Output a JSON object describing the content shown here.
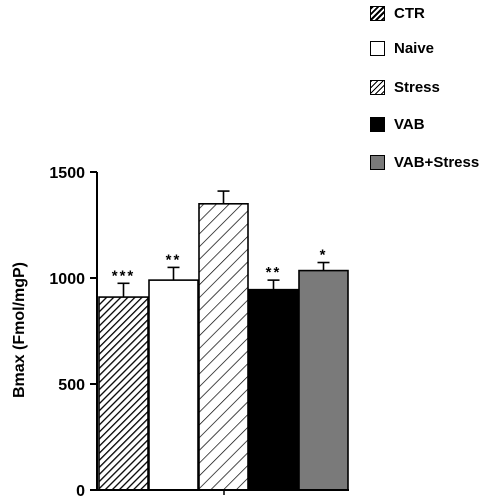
{
  "chart_data": {
    "type": "bar",
    "categories": [
      "CTR",
      "Naive",
      "Stress",
      "VAB",
      "VAB+Stress"
    ],
    "values": [
      910,
      990,
      1350,
      945,
      1035
    ],
    "errors": [
      65,
      60,
      60,
      45,
      38
    ],
    "significance": [
      "***",
      "**",
      "",
      "**",
      "*"
    ],
    "fills": [
      "hatch-dense",
      "white",
      "hatch-sparse",
      "black",
      "gray"
    ],
    "ylabel": "Bmax   (Fmol/mgP)",
    "ylim": [
      0,
      1500
    ],
    "yticks": [
      0,
      500,
      1000,
      1500
    ],
    "grid": false,
    "legend": {
      "position": "top-right",
      "items": [
        "CTR",
        "Naive",
        "Stress",
        "VAB",
        "VAB+Stress"
      ]
    }
  },
  "colors": {
    "axis": "#000000",
    "black_fill": "#000000",
    "gray_fill": "#7a7a7a",
    "white_fill": "#ffffff"
  }
}
